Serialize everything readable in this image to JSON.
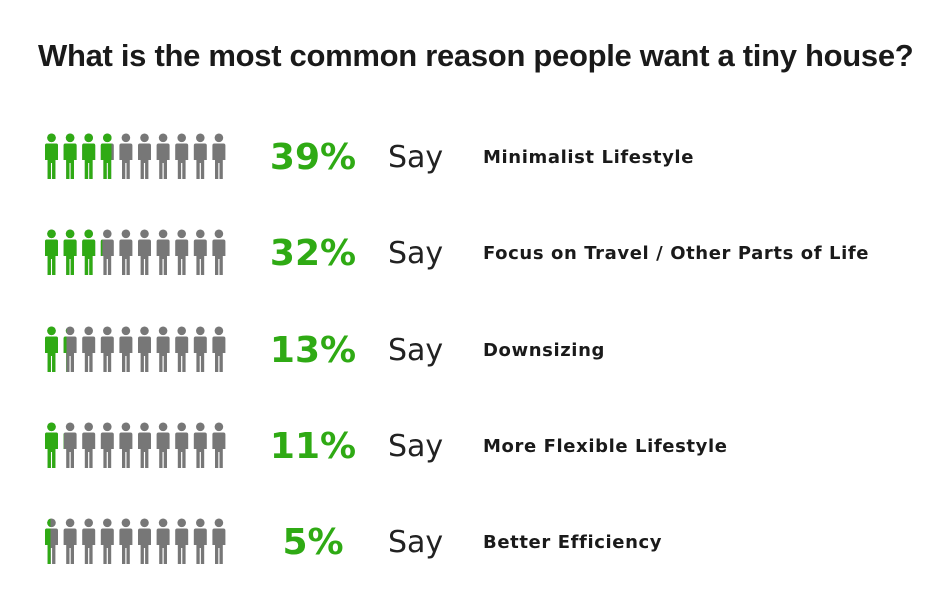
{
  "title": "What is the most common reason people want a tiny house?",
  "say_label": "Say",
  "colors": {
    "highlight": "#2faa14",
    "person": "#777777"
  },
  "chart_data": {
    "type": "pictograph",
    "title": "What is the most common reason people want a tiny house?",
    "icons_per_row": 10,
    "unit": "%",
    "categories": [
      "Minimalist Lifestyle",
      "Focus on Travel / Other Parts of Life",
      "Downsizing",
      "More Flexible Lifestyle",
      "Better Efficiency"
    ],
    "values": [
      39,
      32,
      13,
      11,
      5
    ],
    "labels": [
      "39%",
      "32%",
      "13%",
      "11%",
      "5%"
    ]
  }
}
